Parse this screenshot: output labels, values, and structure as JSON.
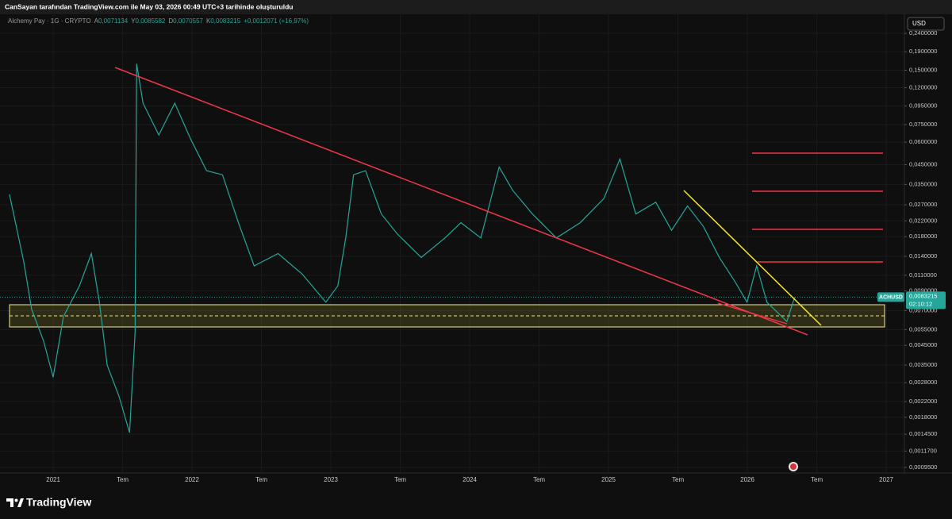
{
  "caption": "CanSayan tarafından TradingView.com ile May 03, 2026 00:49 UTC+3 tarihinde oluşturuldu",
  "brand": "TradingView",
  "currency": "USD",
  "chart_data": {
    "type": "line",
    "title": "Alchemy Pay · 1G · CRYPTO",
    "ohlc": [
      {
        "key": "A",
        "value": "0,0071134"
      },
      {
        "key": "Y",
        "value": "0,0085582"
      },
      {
        "key": "D",
        "value": "0,0070557"
      },
      {
        "key": "K",
        "value": "0,0083215"
      }
    ],
    "change": "+0,0012071 (+16,97%)",
    "symbol": "ACHUSD",
    "last_price": {
      "value": 0.0083215,
      "label": "0,0083215"
    },
    "countdown": "02:10:12",
    "color": "#26a69a",
    "log_scale": true,
    "grid": true,
    "x": [
      2020.685,
      2020.788,
      2020.845,
      2020.931,
      2021.0,
      2021.074,
      2021.189,
      2021.275,
      2021.332,
      2021.389,
      2021.475,
      2021.55,
      2021.59,
      2021.601,
      2021.647,
      2021.761,
      2021.876,
      2021.99,
      2022.105,
      2022.219,
      2022.334,
      2022.448,
      2022.62,
      2022.792,
      2022.964,
      2023.05,
      2023.107,
      2023.164,
      2023.25,
      2023.364,
      2023.479,
      2023.651,
      2023.822,
      2023.937,
      2024.08,
      2024.212,
      2024.309,
      2024.452,
      2024.624,
      2024.796,
      2024.967,
      2025.082,
      2025.196,
      2025.34,
      2025.454,
      2025.569,
      2025.683,
      2025.798,
      2025.912,
      2025.998,
      2026.067,
      2026.141,
      2026.284,
      2026.341
    ],
    "values": [
      0.0309,
      0.0131,
      0.00712,
      0.00475,
      0.003,
      0.0065,
      0.0096,
      0.0145,
      0.0079,
      0.0035,
      0.00234,
      0.00148,
      0.0053,
      0.163,
      0.0986,
      0.0657,
      0.0986,
      0.0624,
      0.0417,
      0.0396,
      0.0215,
      0.0124,
      0.0145,
      0.0112,
      0.0078,
      0.0096,
      0.0177,
      0.0396,
      0.0417,
      0.024,
      0.0186,
      0.0138,
      0.0177,
      0.0215,
      0.0177,
      0.0437,
      0.0325,
      0.024,
      0.0177,
      0.0215,
      0.0293,
      0.0484,
      0.024,
      0.0279,
      0.0195,
      0.0266,
      0.0205,
      0.0138,
      0.0101,
      0.0078,
      0.0124,
      0.0078,
      0.0061,
      0.0083215
    ],
    "xlim": [
      2020.617,
      2027.131
    ],
    "ylim": [
      0.000885,
      0.306
    ],
    "xticks": [
      2021,
      {
        "value": 2021.5,
        "label": "Tem"
      },
      2022,
      {
        "value": 2022.5,
        "label": "Tem"
      },
      2023,
      {
        "value": 2023.5,
        "label": "Tem"
      },
      2024,
      {
        "value": 2024.5,
        "label": "Tem"
      },
      2025,
      {
        "value": 2025.5,
        "label": "Tem"
      },
      2026,
      {
        "value": 2026.5,
        "label": "Tem"
      },
      2027
    ],
    "yticks": [
      {
        "value": 0.24,
        "label": "0,2400000"
      },
      {
        "value": 0.19,
        "label": "0,1900000"
      },
      {
        "value": 0.15,
        "label": "0,1500000"
      },
      {
        "value": 0.12,
        "label": "0,1200000"
      },
      {
        "value": 0.095,
        "label": "0,0950000"
      },
      {
        "value": 0.075,
        "label": "0,0750000"
      },
      {
        "value": 0.06,
        "label": "0,0600000"
      },
      {
        "value": 0.045,
        "label": "0,0450000"
      },
      {
        "value": 0.035,
        "label": "0,0350000"
      },
      {
        "value": 0.027,
        "label": "0,0270000"
      },
      {
        "value": 0.022,
        "label": "0,0220000"
      },
      {
        "value": 0.018,
        "label": "0,0180000"
      },
      {
        "value": 0.014,
        "label": "0,0140000"
      },
      {
        "value": 0.011,
        "label": "0,0110000"
      },
      {
        "value": 0.009,
        "label": "0,0090000"
      },
      {
        "value": 0.007,
        "label": "0,0070000"
      },
      {
        "value": 0.0055,
        "label": "0,0055000"
      },
      {
        "value": 0.0045,
        "label": "0,0045000"
      },
      {
        "value": 0.0035,
        "label": "0,0035000"
      },
      {
        "value": 0.0028,
        "label": "0,0028000"
      },
      {
        "value": 0.0022,
        "label": "0,0022000"
      },
      {
        "value": 0.0018,
        "label": "0,0018000"
      },
      {
        "value": 0.00145,
        "label": "0,0014500"
      },
      {
        "value": 0.00117,
        "label": "0,0011700"
      },
      {
        "value": 0.00095,
        "label": "0,0009500"
      }
    ]
  }
}
